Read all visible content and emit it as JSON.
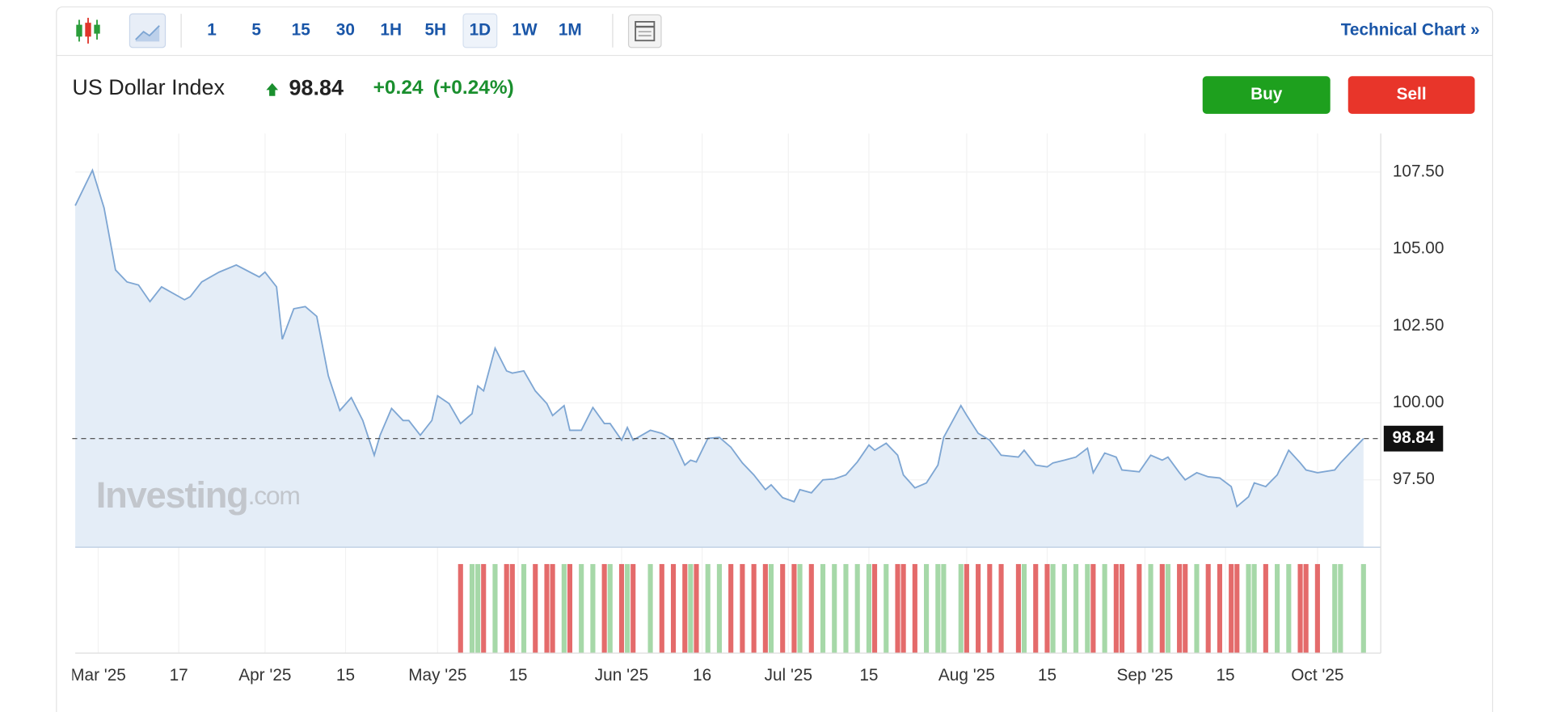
{
  "toolbar": {
    "intervals": [
      "1",
      "5",
      "15",
      "30",
      "1H",
      "5H",
      "1D",
      "1W",
      "1M"
    ],
    "active_interval": "1D",
    "link": "Technical Chart »"
  },
  "header": {
    "name": "US Dollar Index",
    "price": 98.84,
    "change": "+0.24",
    "change_percent": "(+0.24%)"
  },
  "buttons": {
    "buy": "Buy",
    "sell": "Sell"
  },
  "watermark": {
    "brand": "Investing",
    "suffix": ".com"
  },
  "chart_data": {
    "type": "area",
    "color": "#7ea6d3",
    "fill": "#e4edf7",
    "grid": true,
    "x": [
      "2025-02-27",
      "2025-03-02",
      "2025-03-04",
      "2025-03-06",
      "2025-03-08",
      "2025-03-10",
      "2025-03-12",
      "2025-03-14",
      "2025-03-18",
      "2025-03-19",
      "2025-03-21",
      "2025-03-24",
      "2025-03-27",
      "2025-03-31",
      "2025-04-01",
      "2025-04-03",
      "2025-04-04",
      "2025-04-06",
      "2025-04-08",
      "2025-04-10",
      "2025-04-12",
      "2025-04-14",
      "2025-04-16",
      "2025-04-18",
      "2025-04-20",
      "2025-04-21",
      "2025-04-23",
      "2025-04-25",
      "2025-04-26",
      "2025-04-28",
      "2025-04-30",
      "2025-05-01",
      "2025-05-03",
      "2025-05-05",
      "2025-05-07",
      "2025-05-08",
      "2025-05-09",
      "2025-05-11",
      "2025-05-13",
      "2025-05-14",
      "2025-05-16",
      "2025-05-18",
      "2025-05-20",
      "2025-05-21",
      "2025-05-23",
      "2025-05-24",
      "2025-05-26",
      "2025-05-28",
      "2025-05-30",
      "2025-05-31",
      "2025-06-02",
      "2025-06-03",
      "2025-06-04",
      "2025-06-07",
      "2025-06-09",
      "2025-06-11",
      "2025-06-13",
      "2025-06-14",
      "2025-06-15",
      "2025-06-17",
      "2025-06-19",
      "2025-06-21",
      "2025-06-23",
      "2025-06-25",
      "2025-06-27",
      "2025-06-28",
      "2025-06-30",
      "2025-07-02",
      "2025-07-03",
      "2025-07-05",
      "2025-07-07",
      "2025-07-09",
      "2025-07-11",
      "2025-07-13",
      "2025-07-15",
      "2025-07-16",
      "2025-07-18",
      "2025-07-20",
      "2025-07-21",
      "2025-07-23",
      "2025-07-25",
      "2025-07-27",
      "2025-07-28",
      "2025-07-31",
      "2025-08-01",
      "2025-08-03",
      "2025-08-05",
      "2025-08-07",
      "2025-08-10",
      "2025-08-11",
      "2025-08-13",
      "2025-08-15",
      "2025-08-16",
      "2025-08-18",
      "2025-08-20",
      "2025-08-22",
      "2025-08-23",
      "2025-08-25",
      "2025-08-27",
      "2025-08-28",
      "2025-08-31",
      "2025-09-02",
      "2025-09-04",
      "2025-09-05",
      "2025-09-07",
      "2025-09-08",
      "2025-09-10",
      "2025-09-12",
      "2025-09-14",
      "2025-09-16",
      "2025-09-17",
      "2025-09-19",
      "2025-09-20",
      "2025-09-22",
      "2025-09-24",
      "2025-09-26",
      "2025-09-28",
      "2025-09-29",
      "2025-10-01",
      "2025-10-04",
      "2025-10-05",
      "2025-10-09"
    ],
    "values": [
      106.41,
      107.56,
      106.34,
      104.32,
      103.93,
      103.83,
      103.29,
      103.77,
      103.35,
      103.45,
      103.93,
      104.25,
      104.48,
      104.09,
      104.25,
      103.77,
      102.07,
      103.06,
      103.13,
      102.81,
      100.88,
      99.75,
      100.17,
      99.43,
      98.3,
      98.95,
      99.82,
      99.43,
      99.43,
      98.95,
      99.43,
      100.23,
      99.98,
      99.33,
      99.65,
      100.55,
      100.39,
      101.78,
      101.04,
      100.97,
      101.04,
      100.39,
      99.98,
      99.59,
      99.91,
      99.11,
      99.11,
      99.85,
      99.33,
      99.33,
      98.79,
      99.2,
      98.79,
      99.11,
      99.01,
      98.79,
      97.98,
      98.14,
      98.08,
      98.85,
      98.88,
      98.56,
      98.05,
      97.66,
      97.18,
      97.34,
      96.92,
      96.79,
      97.18,
      97.08,
      97.5,
      97.53,
      97.66,
      98.08,
      98.63,
      98.46,
      98.69,
      98.3,
      97.66,
      97.24,
      97.4,
      97.98,
      98.88,
      99.91,
      99.6,
      99.01,
      98.79,
      98.3,
      98.24,
      98.46,
      97.98,
      97.92,
      98.05,
      98.14,
      98.24,
      98.53,
      97.73,
      98.37,
      98.24,
      97.82,
      97.76,
      98.3,
      98.14,
      98.24,
      97.73,
      97.5,
      97.73,
      97.6,
      97.56,
      97.28,
      96.63,
      96.95,
      97.4,
      97.28,
      97.66,
      98.46,
      98.05,
      97.82,
      97.73,
      97.82,
      98.05,
      98.84
    ],
    "last_value": 98.84,
    "xlim": [
      "2025-02-27",
      "2025-10-12"
    ],
    "xticks": [
      {
        "value": "2025-03-03",
        "label": "Mar '25"
      },
      {
        "value": "2025-03-17",
        "label": "17"
      },
      {
        "value": "2025-04-01",
        "label": "Apr '25"
      },
      {
        "value": "2025-04-15",
        "label": "15"
      },
      {
        "value": "2025-05-01",
        "label": "May '25"
      },
      {
        "value": "2025-05-15",
        "label": "15"
      },
      {
        "value": "2025-06-02",
        "label": "Jun '25"
      },
      {
        "value": "2025-06-16",
        "label": "16"
      },
      {
        "value": "2025-07-01",
        "label": "Jul '25"
      },
      {
        "value": "2025-07-15",
        "label": "15"
      },
      {
        "value": "2025-08-01",
        "label": "Aug '25"
      },
      {
        "value": "2025-08-15",
        "label": "15"
      },
      {
        "value": "2025-09-01",
        "label": "Sep '25"
      },
      {
        "value": "2025-09-15",
        "label": "15"
      },
      {
        "value": "2025-10-01",
        "label": "Oct '25"
      }
    ],
    "ylim": [
      95.31,
      108.75
    ],
    "yticks": [
      {
        "value": 97.5,
        "label": "97.50"
      },
      {
        "value": 100,
        "label": "100.00"
      },
      {
        "value": 102.5,
        "label": "102.50"
      },
      {
        "value": 105,
        "label": "105.00"
      },
      {
        "value": 107.5,
        "label": "107.50"
      }
    ]
  }
}
